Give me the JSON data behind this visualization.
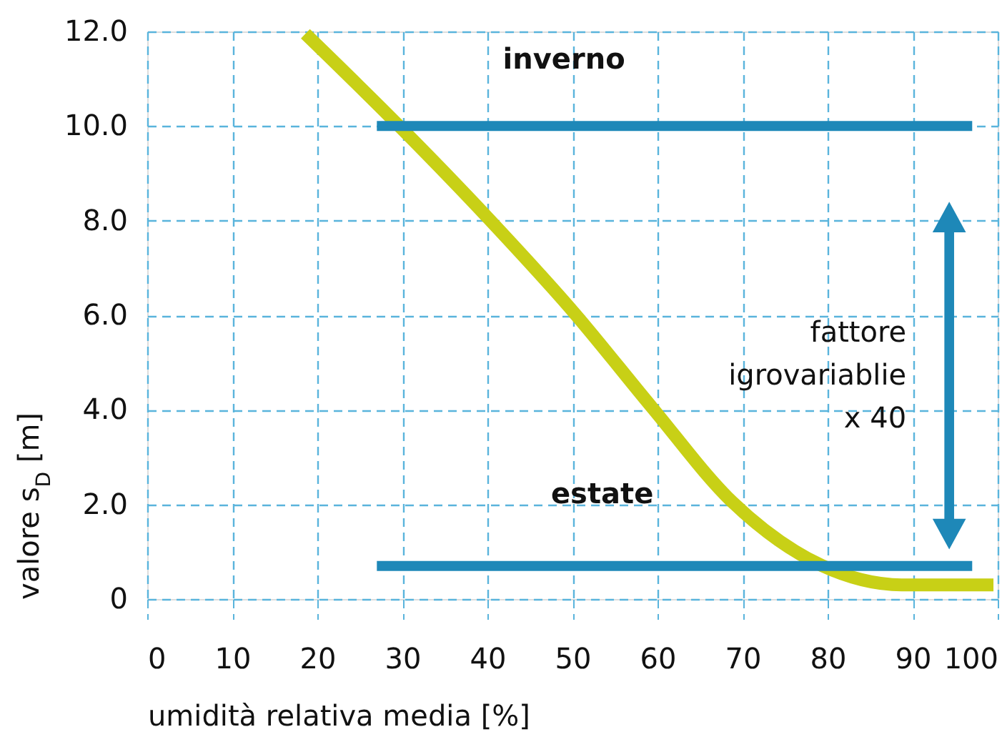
{
  "chart_data": {
    "type": "line",
    "xlabel": "umidità relativa media [%]",
    "ylabel": "valore s$_{D}$ [m]",
    "xlim": [
      0,
      100
    ],
    "xticks": [
      0,
      10,
      20,
      30,
      40,
      50,
      60,
      70,
      80,
      90,
      100
    ],
    "ylim": [
      0,
      12
    ],
    "yticks": [
      0,
      {
        "value": 2,
        "label": "2.0"
      },
      {
        "value": 4,
        "label": "4.0"
      },
      {
        "value": 6,
        "label": "6.0"
      },
      {
        "value": 8,
        "label": "8.0"
      },
      {
        "value": 10,
        "label": "10.0"
      },
      {
        "value": 12,
        "label": "12.0"
      }
    ],
    "grid": true,
    "marker": "none",
    "line_style": "solid",
    "series": [
      {
        "color": "#c8d016",
        "x": [
          18.6,
          29.4,
          40.1,
          50.3,
          59.4,
          68.8,
          79.3,
          88.7,
          99.5
        ],
        "values": [
          11.95,
          10.04,
          8.05,
          6.03,
          4.04,
          2.05,
          0.71,
          0.3,
          0.3
        ]
      },
      {
        "color": "#1e88b8",
        "x": [
          27,
          97
        ],
        "values": [
          10,
          10
        ]
      },
      {
        "color": "#1e88b8",
        "x": [
          27,
          97
        ],
        "values": [
          0.7,
          0.7
        ]
      }
    ],
    "annotations": [
      "inverno",
      "estate",
      "fattore\nigrovariablie\nx 40"
    ]
  }
}
